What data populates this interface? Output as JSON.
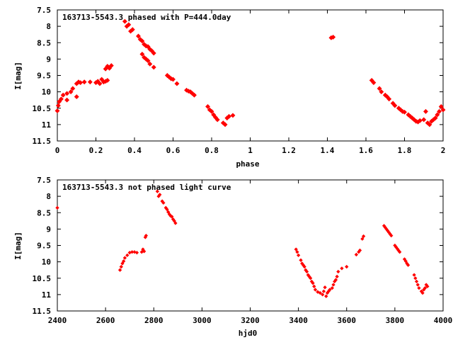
{
  "chart_data": [
    {
      "type": "scatter",
      "title": "163713-5543.3 phased with P=444.0day",
      "xlabel": "phase",
      "ylabel": "I[mag]",
      "xlim": [
        0,
        2
      ],
      "ylim": [
        7.5,
        11.5
      ],
      "y_inverted": true,
      "xticks": [
        "0",
        "0.2",
        "0.4",
        "0.6",
        "0.8",
        "1",
        "1.2",
        "1.4",
        "1.6",
        "1.8",
        "2"
      ],
      "yticks": [
        "7.5",
        "8",
        "8.5",
        "9",
        "9.5",
        "10",
        "10.5",
        "11",
        "11.5"
      ],
      "marker_color": "#ff0000",
      "points": [
        [
          0.0,
          10.58
        ],
        [
          0.005,
          10.42
        ],
        [
          0.01,
          10.3
        ],
        [
          0.02,
          10.22
        ],
        [
          0.03,
          10.1
        ],
        [
          0.05,
          10.05
        ],
        [
          0.07,
          10.0
        ],
        [
          0.08,
          9.9
        ],
        [
          0.1,
          9.75
        ],
        [
          0.11,
          9.7
        ],
        [
          0.12,
          9.72
        ],
        [
          0.14,
          9.7
        ],
        [
          0.17,
          9.7
        ],
        [
          0.2,
          9.72
        ],
        [
          0.21,
          9.68
        ],
        [
          0.22,
          9.75
        ],
        [
          0.23,
          9.62
        ],
        [
          0.24,
          9.7
        ],
        [
          0.25,
          9.68
        ],
        [
          0.26,
          9.65
        ],
        [
          0.25,
          9.3
        ],
        [
          0.26,
          9.22
        ],
        [
          0.27,
          9.28
        ],
        [
          0.28,
          9.2
        ],
        [
          0.05,
          10.25
        ],
        [
          0.1,
          10.15
        ],
        [
          0.35,
          7.85
        ],
        [
          0.36,
          8.0
        ],
        [
          0.37,
          7.95
        ],
        [
          0.38,
          8.15
        ],
        [
          0.39,
          8.1
        ],
        [
          0.42,
          8.3
        ],
        [
          0.43,
          8.4
        ],
        [
          0.44,
          8.45
        ],
        [
          0.45,
          8.55
        ],
        [
          0.46,
          8.6
        ],
        [
          0.47,
          8.62
        ],
        [
          0.48,
          8.7
        ],
        [
          0.49,
          8.75
        ],
        [
          0.5,
          8.82
        ],
        [
          0.44,
          8.85
        ],
        [
          0.45,
          8.95
        ],
        [
          0.46,
          9.0
        ],
        [
          0.47,
          9.05
        ],
        [
          0.48,
          9.15
        ],
        [
          0.5,
          9.25
        ],
        [
          0.57,
          9.5
        ],
        [
          0.58,
          9.55
        ],
        [
          0.59,
          9.6
        ],
        [
          0.6,
          9.62
        ],
        [
          0.62,
          9.75
        ],
        [
          0.67,
          9.95
        ],
        [
          0.68,
          9.98
        ],
        [
          0.69,
          10.0
        ],
        [
          0.7,
          10.05
        ],
        [
          0.71,
          10.1
        ],
        [
          0.78,
          10.45
        ],
        [
          0.79,
          10.55
        ],
        [
          0.8,
          10.6
        ],
        [
          0.81,
          10.7
        ],
        [
          0.82,
          10.78
        ],
        [
          0.83,
          10.85
        ],
        [
          0.86,
          10.95
        ],
        [
          0.87,
          11.0
        ],
        [
          0.88,
          10.8
        ],
        [
          0.89,
          10.75
        ],
        [
          0.91,
          10.72
        ],
        [
          1.42,
          8.35
        ],
        [
          1.43,
          8.33
        ],
        [
          1.63,
          9.65
        ],
        [
          1.64,
          9.72
        ],
        [
          1.67,
          9.9
        ],
        [
          1.68,
          10.0
        ],
        [
          1.7,
          10.1
        ],
        [
          1.71,
          10.15
        ],
        [
          1.72,
          10.22
        ],
        [
          1.74,
          10.35
        ],
        [
          1.75,
          10.42
        ],
        [
          1.77,
          10.5
        ],
        [
          1.78,
          10.55
        ],
        [
          1.79,
          10.6
        ],
        [
          1.8,
          10.62
        ],
        [
          1.82,
          10.7
        ],
        [
          1.83,
          10.75
        ],
        [
          1.84,
          10.8
        ],
        [
          1.85,
          10.85
        ],
        [
          1.86,
          10.9
        ],
        [
          1.87,
          10.92
        ],
        [
          1.88,
          10.88
        ],
        [
          1.9,
          10.85
        ],
        [
          1.91,
          10.6
        ],
        [
          1.92,
          10.95
        ],
        [
          1.93,
          11.0
        ],
        [
          1.94,
          10.9
        ],
        [
          1.95,
          10.85
        ],
        [
          1.96,
          10.8
        ],
        [
          1.97,
          10.7
        ],
        [
          1.98,
          10.6
        ],
        [
          1.99,
          10.45
        ],
        [
          2.0,
          10.55
        ]
      ]
    },
    {
      "type": "scatter",
      "title": "163713-5543.3 not phased light curve",
      "xlabel": "hjd0",
      "ylabel": "I[mag]",
      "xlim": [
        2400,
        4000
      ],
      "ylim": [
        7.5,
        11.5
      ],
      "y_inverted": true,
      "xticks": [
        "2400",
        "2600",
        "2800",
        "3000",
        "3200",
        "3400",
        "3600",
        "3800",
        "4000"
      ],
      "yticks": [
        "7.5",
        "8",
        "8.5",
        "9",
        "9.5",
        "10",
        "10.5",
        "11",
        "11.5"
      ],
      "marker_color": "#ff0000",
      "points": [
        [
          2400,
          8.35
        ],
        [
          2660,
          10.25
        ],
        [
          2665,
          10.15
        ],
        [
          2670,
          10.05
        ],
        [
          2675,
          9.98
        ],
        [
          2680,
          9.88
        ],
        [
          2690,
          9.8
        ],
        [
          2700,
          9.72
        ],
        [
          2710,
          9.7
        ],
        [
          2720,
          9.7
        ],
        [
          2730,
          9.72
        ],
        [
          2750,
          9.7
        ],
        [
          2755,
          9.62
        ],
        [
          2760,
          9.68
        ],
        [
          2765,
          9.25
        ],
        [
          2768,
          9.2
        ],
        [
          2815,
          7.85
        ],
        [
          2820,
          8.0
        ],
        [
          2825,
          7.95
        ],
        [
          2835,
          8.15
        ],
        [
          2840,
          8.2
        ],
        [
          2850,
          8.35
        ],
        [
          2855,
          8.4
        ],
        [
          2860,
          8.48
        ],
        [
          2865,
          8.55
        ],
        [
          2870,
          8.6
        ],
        [
          2875,
          8.62
        ],
        [
          2880,
          8.7
        ],
        [
          2885,
          8.75
        ],
        [
          2890,
          8.82
        ],
        [
          3390,
          9.62
        ],
        [
          3395,
          9.7
        ],
        [
          3400,
          9.8
        ],
        [
          3410,
          9.95
        ],
        [
          3415,
          10.05
        ],
        [
          3420,
          10.1
        ],
        [
          3425,
          10.15
        ],
        [
          3430,
          10.25
        ],
        [
          3435,
          10.3
        ],
        [
          3440,
          10.4
        ],
        [
          3445,
          10.45
        ],
        [
          3450,
          10.5
        ],
        [
          3455,
          10.6
        ],
        [
          3460,
          10.65
        ],
        [
          3465,
          10.75
        ],
        [
          3470,
          10.85
        ],
        [
          3480,
          10.92
        ],
        [
          3490,
          10.95
        ],
        [
          3500,
          11.0
        ],
        [
          3505,
          10.9
        ],
        [
          3510,
          10.78
        ],
        [
          3515,
          11.05
        ],
        [
          3520,
          10.95
        ],
        [
          3525,
          10.9
        ],
        [
          3530,
          10.85
        ],
        [
          3540,
          10.8
        ],
        [
          3545,
          10.7
        ],
        [
          3550,
          10.6
        ],
        [
          3555,
          10.55
        ],
        [
          3560,
          10.45
        ],
        [
          3565,
          10.3
        ],
        [
          3580,
          10.2
        ],
        [
          3600,
          10.15
        ],
        [
          3640,
          9.78
        ],
        [
          3650,
          9.7
        ],
        [
          3655,
          9.65
        ],
        [
          3665,
          9.3
        ],
        [
          3670,
          9.22
        ],
        [
          3755,
          8.9
        ],
        [
          3760,
          8.95
        ],
        [
          3765,
          9.0
        ],
        [
          3770,
          9.05
        ],
        [
          3775,
          9.1
        ],
        [
          3780,
          9.15
        ],
        [
          3785,
          9.2
        ],
        [
          3800,
          9.5
        ],
        [
          3805,
          9.55
        ],
        [
          3810,
          9.6
        ],
        [
          3815,
          9.65
        ],
        [
          3820,
          9.7
        ],
        [
          3840,
          9.92
        ],
        [
          3845,
          9.98
        ],
        [
          3850,
          10.05
        ],
        [
          3855,
          10.1
        ],
        [
          3880,
          10.4
        ],
        [
          3885,
          10.5
        ],
        [
          3890,
          10.6
        ],
        [
          3895,
          10.7
        ],
        [
          3900,
          10.8
        ],
        [
          3910,
          10.9
        ],
        [
          3915,
          10.95
        ],
        [
          3920,
          10.85
        ],
        [
          3925,
          10.8
        ],
        [
          3930,
          10.7
        ],
        [
          3935,
          10.75
        ]
      ]
    }
  ]
}
